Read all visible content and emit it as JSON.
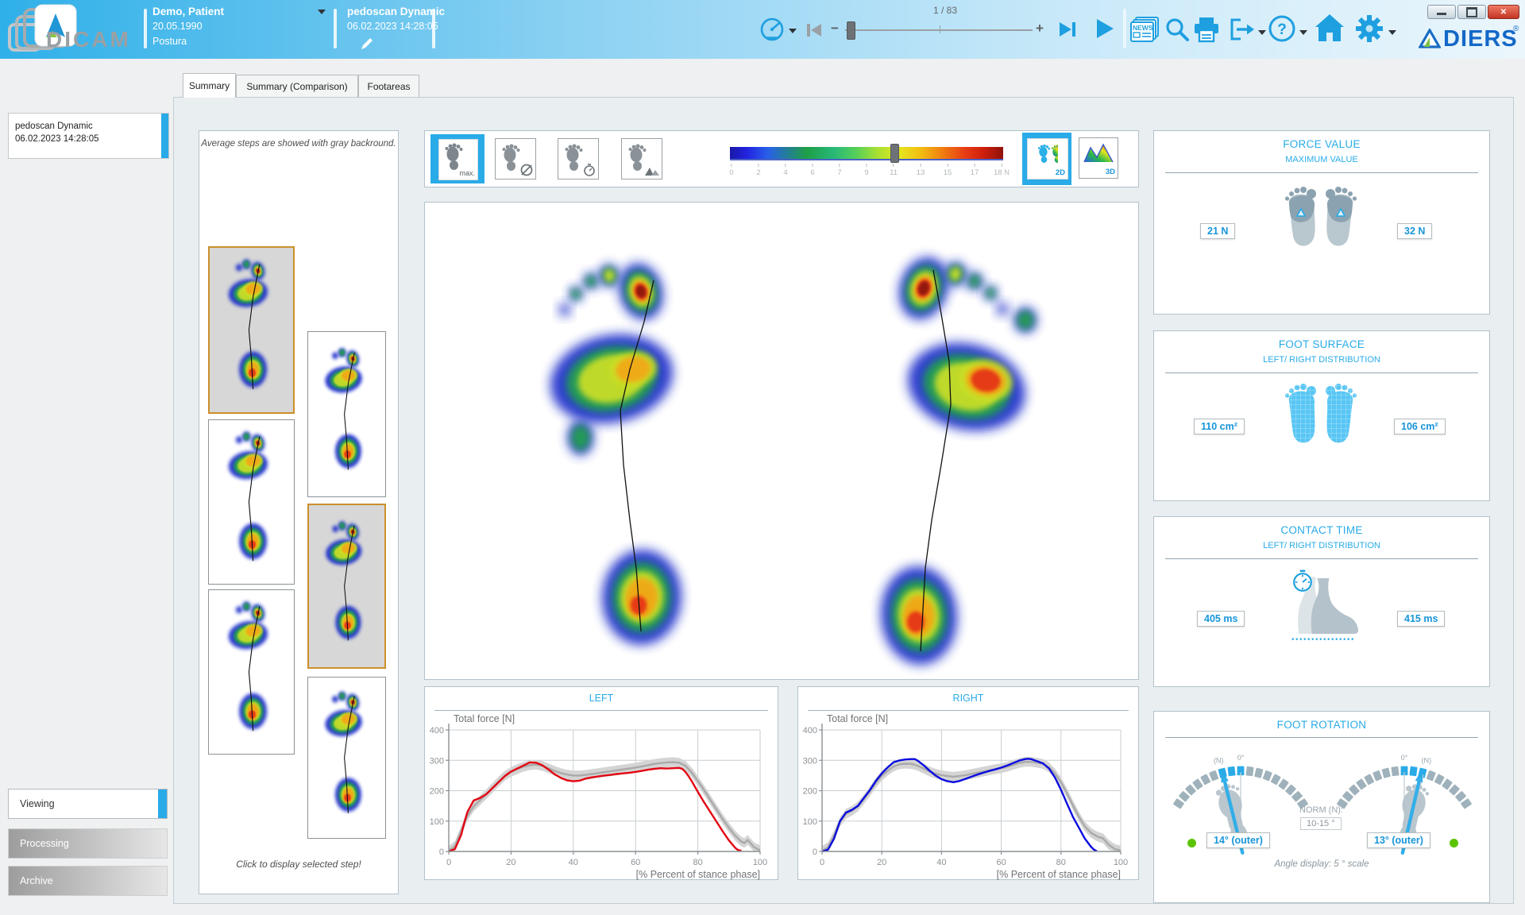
{
  "header": {
    "app_name": "DICAM",
    "patient": {
      "name": "Demo, Patient",
      "birthdate": "20.05.1990",
      "category": "Postura"
    },
    "session": {
      "name": "pedoscan Dynamic",
      "datetime": "06.02.2023 14:28:05"
    },
    "playback": {
      "frame_counter": "1 / 83"
    },
    "brand": {
      "name": "DIERS",
      "registered": "®"
    }
  },
  "tabs": [
    {
      "label": "Summary",
      "active": true
    },
    {
      "label": "Summary (Comparison)",
      "active": false
    },
    {
      "label": "Footareas",
      "active": false
    }
  ],
  "sidebar": {
    "session_item": {
      "title": "pedoscan Dynamic",
      "subtitle": "06.02.2023 14:28:05"
    },
    "nav": [
      {
        "label": "Viewing",
        "active": true
      },
      {
        "label": "Processing",
        "active": false
      },
      {
        "label": "Archive",
        "active": false
      }
    ]
  },
  "steps_panel": {
    "top_note": "Average steps are showed with gray backround.",
    "bottom_note": "Click to display selected step!",
    "steps": [
      {
        "selected": true
      },
      {
        "selected": false
      },
      {
        "selected": false
      },
      {
        "selected": true
      },
      {
        "selected": false
      },
      {
        "selected": false
      }
    ]
  },
  "toolbar": {
    "max_button_label": "max.",
    "scale_ticks": [
      "0",
      "2",
      "4",
      "6",
      "7",
      "9",
      "11",
      "13",
      "15",
      "17",
      "18 N"
    ],
    "scale_slider_tick_index": 6,
    "view2d_label": "2D",
    "view3d_label": "3D"
  },
  "chart_data": [
    {
      "type": "line",
      "title": "LEFT",
      "ylabel": "Total force [N]",
      "xlabel": "[% Percent of stance phase]",
      "xlim": [
        0,
        100
      ],
      "ylim": [
        0,
        400
      ],
      "xticks": [
        0,
        20,
        40,
        60,
        80,
        100
      ],
      "yticks": [
        0,
        100,
        200,
        300,
        400
      ],
      "series": [
        {
          "name": "average steps (gray band)",
          "color": "#a9a9a9",
          "band": 16,
          "points": [
            [
              0,
              2
            ],
            [
              2,
              18
            ],
            [
              4,
              68
            ],
            [
              6,
              118
            ],
            [
              8,
              148
            ],
            [
              10,
              168
            ],
            [
              12,
              188
            ],
            [
              14,
              209
            ],
            [
              16,
              230
            ],
            [
              18,
              249
            ],
            [
              20,
              262
            ],
            [
              22,
              271
            ],
            [
              24,
              279
            ],
            [
              26,
              284
            ],
            [
              28,
              286
            ],
            [
              30,
              282
            ],
            [
              32,
              274
            ],
            [
              34,
              265
            ],
            [
              36,
              258
            ],
            [
              38,
              253
            ],
            [
              40,
              250
            ],
            [
              42,
              250
            ],
            [
              44,
              252
            ],
            [
              46,
              255
            ],
            [
              48,
              258
            ],
            [
              50,
              261
            ],
            [
              52,
              264
            ],
            [
              54,
              267
            ],
            [
              56,
              270
            ],
            [
              58,
              273
            ],
            [
              60,
              276
            ],
            [
              62,
              280
            ],
            [
              64,
              284
            ],
            [
              66,
              288
            ],
            [
              68,
              291
            ],
            [
              70,
              293
            ],
            [
              72,
              294
            ],
            [
              74,
              292
            ],
            [
              76,
              282
            ],
            [
              78,
              260
            ],
            [
              80,
              232
            ],
            [
              82,
              202
            ],
            [
              84,
              170
            ],
            [
              86,
              138
            ],
            [
              88,
              106
            ],
            [
              90,
              78
            ],
            [
              92,
              52
            ],
            [
              94,
              32
            ],
            [
              95,
              28
            ],
            [
              96,
              38
            ],
            [
              98,
              14
            ],
            [
              100,
              4
            ]
          ]
        },
        {
          "name": "left foot total force",
          "color": "#e30613",
          "points": [
            [
              0,
              0
            ],
            [
              2,
              8
            ],
            [
              4,
              55
            ],
            [
              5,
              95
            ],
            [
              6,
              130
            ],
            [
              8,
              168
            ],
            [
              10,
              176
            ],
            [
              12,
              188
            ],
            [
              14,
              208
            ],
            [
              16,
              228
            ],
            [
              18,
              248
            ],
            [
              20,
              263
            ],
            [
              22,
              273
            ],
            [
              24,
              283
            ],
            [
              26,
              293
            ],
            [
              28,
              292
            ],
            [
              30,
              284
            ],
            [
              32,
              270
            ],
            [
              34,
              254
            ],
            [
              36,
              242
            ],
            [
              38,
              234
            ],
            [
              40,
              231
            ],
            [
              42,
              233
            ],
            [
              44,
              240
            ],
            [
              46,
              244
            ],
            [
              48,
              247
            ],
            [
              50,
              250
            ],
            [
              52,
              252
            ],
            [
              54,
              255
            ],
            [
              56,
              257
            ],
            [
              58,
              259
            ],
            [
              60,
              262
            ],
            [
              62,
              265
            ],
            [
              64,
              269
            ],
            [
              66,
              272
            ],
            [
              68,
              274
            ],
            [
              70,
              273
            ],
            [
              72,
              274
            ],
            [
              74,
              275
            ],
            [
              75,
              272
            ],
            [
              76,
              262
            ],
            [
              77,
              248
            ],
            [
              78,
              232
            ],
            [
              80,
              196
            ],
            [
              82,
              162
            ],
            [
              84,
              130
            ],
            [
              86,
              98
            ],
            [
              88,
              66
            ],
            [
              90,
              36
            ],
            [
              92,
              12
            ],
            [
              93,
              4
            ],
            [
              94,
              3
            ]
          ]
        }
      ]
    },
    {
      "type": "line",
      "title": "RIGHT",
      "ylabel": "Total force [N]",
      "xlabel": "[% Percent of stance phase]",
      "xlim": [
        0,
        100
      ],
      "ylim": [
        0,
        400
      ],
      "xticks": [
        0,
        20,
        40,
        60,
        80,
        100
      ],
      "yticks": [
        0,
        100,
        200,
        300,
        400
      ],
      "series": [
        {
          "name": "average steps (gray band)",
          "color": "#a9a9a9",
          "band": 16,
          "points": [
            [
              0,
              2
            ],
            [
              2,
              14
            ],
            [
              4,
              52
            ],
            [
              6,
              98
            ],
            [
              8,
              124
            ],
            [
              10,
              134
            ],
            [
              12,
              148
            ],
            [
              14,
              172
            ],
            [
              16,
              198
            ],
            [
              18,
              226
            ],
            [
              20,
              249
            ],
            [
              22,
              266
            ],
            [
              24,
              280
            ],
            [
              26,
              287
            ],
            [
              28,
              289
            ],
            [
              30,
              288
            ],
            [
              32,
              282
            ],
            [
              34,
              273
            ],
            [
              36,
              263
            ],
            [
              38,
              256
            ],
            [
              40,
              251
            ],
            [
              42,
              248
            ],
            [
              44,
              246
            ],
            [
              46,
              248
            ],
            [
              48,
              251
            ],
            [
              50,
              255
            ],
            [
              52,
              259
            ],
            [
              54,
              263
            ],
            [
              56,
              267
            ],
            [
              58,
              271
            ],
            [
              60,
              274
            ],
            [
              62,
              279
            ],
            [
              64,
              285
            ],
            [
              66,
              291
            ],
            [
              68,
              295
            ],
            [
              70,
              295
            ],
            [
              72,
              292
            ],
            [
              74,
              288
            ],
            [
              76,
              277
            ],
            [
              78,
              256
            ],
            [
              80,
              228
            ],
            [
              82,
              192
            ],
            [
              84,
              152
            ],
            [
              86,
              114
            ],
            [
              88,
              82
            ],
            [
              90,
              62
            ],
            [
              92,
              50
            ],
            [
              93,
              46
            ],
            [
              94,
              44
            ],
            [
              96,
              22
            ],
            [
              98,
              8
            ],
            [
              100,
              3
            ]
          ]
        },
        {
          "name": "right foot total force",
          "color": "#0a0ae0",
          "points": [
            [
              0,
              0
            ],
            [
              2,
              6
            ],
            [
              4,
              42
            ],
            [
              6,
              100
            ],
            [
              8,
              128
            ],
            [
              10,
              137
            ],
            [
              12,
              150
            ],
            [
              14,
              176
            ],
            [
              16,
              202
            ],
            [
              18,
              232
            ],
            [
              20,
              257
            ],
            [
              22,
              277
            ],
            [
              24,
              294
            ],
            [
              26,
              300
            ],
            [
              28,
              303
            ],
            [
              30,
              304
            ],
            [
              31,
              304
            ],
            [
              32,
              299
            ],
            [
              34,
              284
            ],
            [
              36,
              266
            ],
            [
              38,
              250
            ],
            [
              40,
              238
            ],
            [
              42,
              231
            ],
            [
              44,
              228
            ],
            [
              46,
              232
            ],
            [
              48,
              239
            ],
            [
              50,
              246
            ],
            [
              52,
              253
            ],
            [
              54,
              259
            ],
            [
              56,
              265
            ],
            [
              58,
              270
            ],
            [
              60,
              276
            ],
            [
              62,
              283
            ],
            [
              64,
              291
            ],
            [
              66,
              299
            ],
            [
              68,
              304
            ],
            [
              69,
              305
            ],
            [
              70,
              304
            ],
            [
              72,
              297
            ],
            [
              74,
              290
            ],
            [
              76,
              273
            ],
            [
              78,
              243
            ],
            [
              80,
              203
            ],
            [
              82,
              158
            ],
            [
              84,
              114
            ],
            [
              86,
              78
            ],
            [
              88,
              42
            ],
            [
              90,
              16
            ],
            [
              91,
              6
            ],
            [
              92,
              1
            ]
          ]
        }
      ]
    }
  ],
  "metrics": {
    "force_value": {
      "title": "FORCE VALUE",
      "subtitle": "MAXIMUM VALUE",
      "left": "21 N",
      "right": "32 N"
    },
    "foot_surface": {
      "title": "FOOT SURFACE",
      "subtitle": "LEFT/ RIGHT DISTRIBUTION",
      "left": "110 cm²",
      "right": "106 cm²"
    },
    "contact_time": {
      "title": "CONTACT TIME",
      "subtitle": "LEFT/ RIGHT DISTRIBUTION",
      "left": "405 ms",
      "right": "415 ms"
    },
    "foot_rotation": {
      "title": "FOOT ROTATION",
      "left_value": "14° (outer)",
      "right_value": "13° (outer)",
      "left_angle": 14,
      "right_angle": 13,
      "norm_label": "NORM (N):",
      "norm_value": "10-15 °",
      "angle_note": "Angle display: 5 ° scale",
      "label_n": "(N)",
      "label_zero": "0°"
    }
  },
  "colors": {
    "accent": "#29abe8",
    "value_text": "#1795da",
    "chart_left": "#e30613",
    "chart_right": "#0a0ae0",
    "selected_step_border": "#cc8f2a",
    "ok_green": "#5bc400"
  }
}
